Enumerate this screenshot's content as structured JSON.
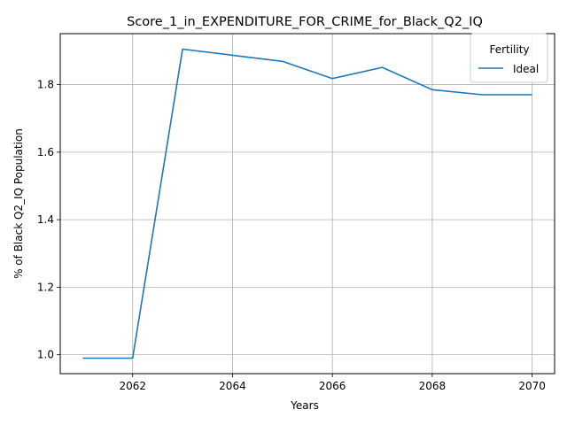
{
  "chart_data": {
    "type": "line",
    "title": "Score_1_in_EXPENDITURE_FOR_CRIME_for_Black_Q2_IQ",
    "xlabel": "Years",
    "ylabel": "% of Black Q2_IQ Population",
    "xlim": [
      2060.55,
      2070.45
    ],
    "ylim": [
      0.944,
      1.951
    ],
    "xticks": [
      2062,
      2064,
      2066,
      2068,
      2070
    ],
    "yticks": [
      1.0,
      1.2,
      1.4,
      1.6,
      1.8
    ],
    "ytick_labels": [
      "1.0",
      "1.2",
      "1.4",
      "1.6",
      "1.8"
    ],
    "grid": true,
    "legend": {
      "title": "Fertility",
      "position": "top-right"
    },
    "series": [
      {
        "name": "Ideal",
        "color": "#1f77b4",
        "x": [
          2061,
          2062,
          2063,
          2064,
          2065,
          2066,
          2067,
          2068,
          2069,
          2070
        ],
        "y": [
          0.99,
          0.99,
          1.905,
          1.887,
          1.869,
          1.818,
          1.851,
          1.785,
          1.77,
          1.77
        ]
      }
    ]
  }
}
